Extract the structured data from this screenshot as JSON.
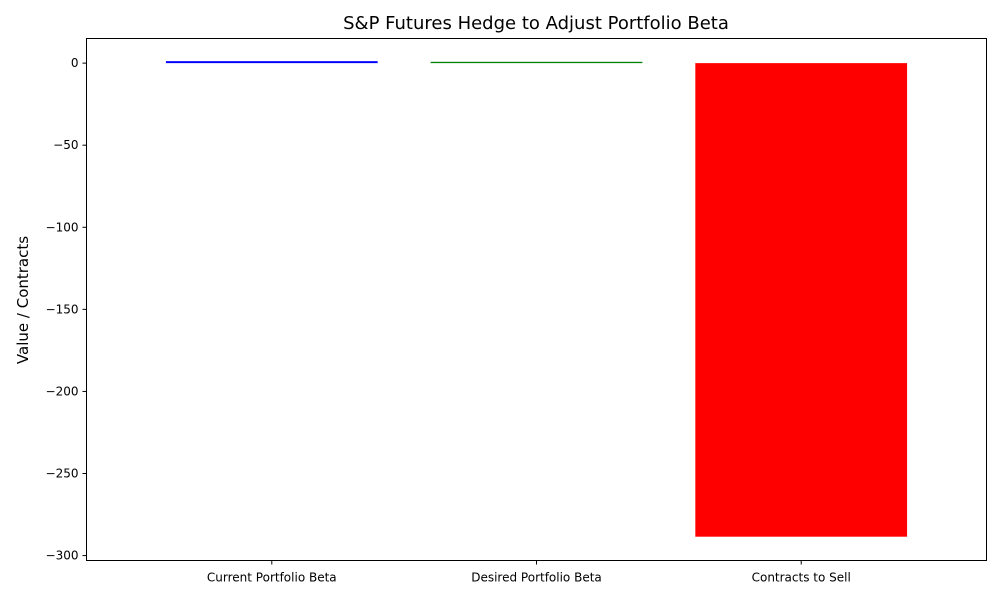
{
  "chart_data": {
    "type": "bar",
    "title": "S&P Futures Hedge to Adjust Portfolio Beta",
    "xlabel": "",
    "ylabel": "Value / Contracts",
    "categories": [
      "Current Portfolio Beta",
      "Desired Portfolio Beta",
      "Contracts to Sell"
    ],
    "values": [
      1.2,
      0.8,
      -288.5
    ],
    "bar_colors": [
      "#0000ff",
      "#008000",
      "#ff0000"
    ],
    "ylim": [
      -303,
      15
    ],
    "yticks": [
      0,
      -50,
      -100,
      -150,
      -200,
      -250,
      -300
    ],
    "ytick_labels": [
      "0",
      "−50",
      "−100",
      "−150",
      "−200",
      "−250",
      "−300"
    ],
    "grid": false,
    "legend": "none"
  }
}
